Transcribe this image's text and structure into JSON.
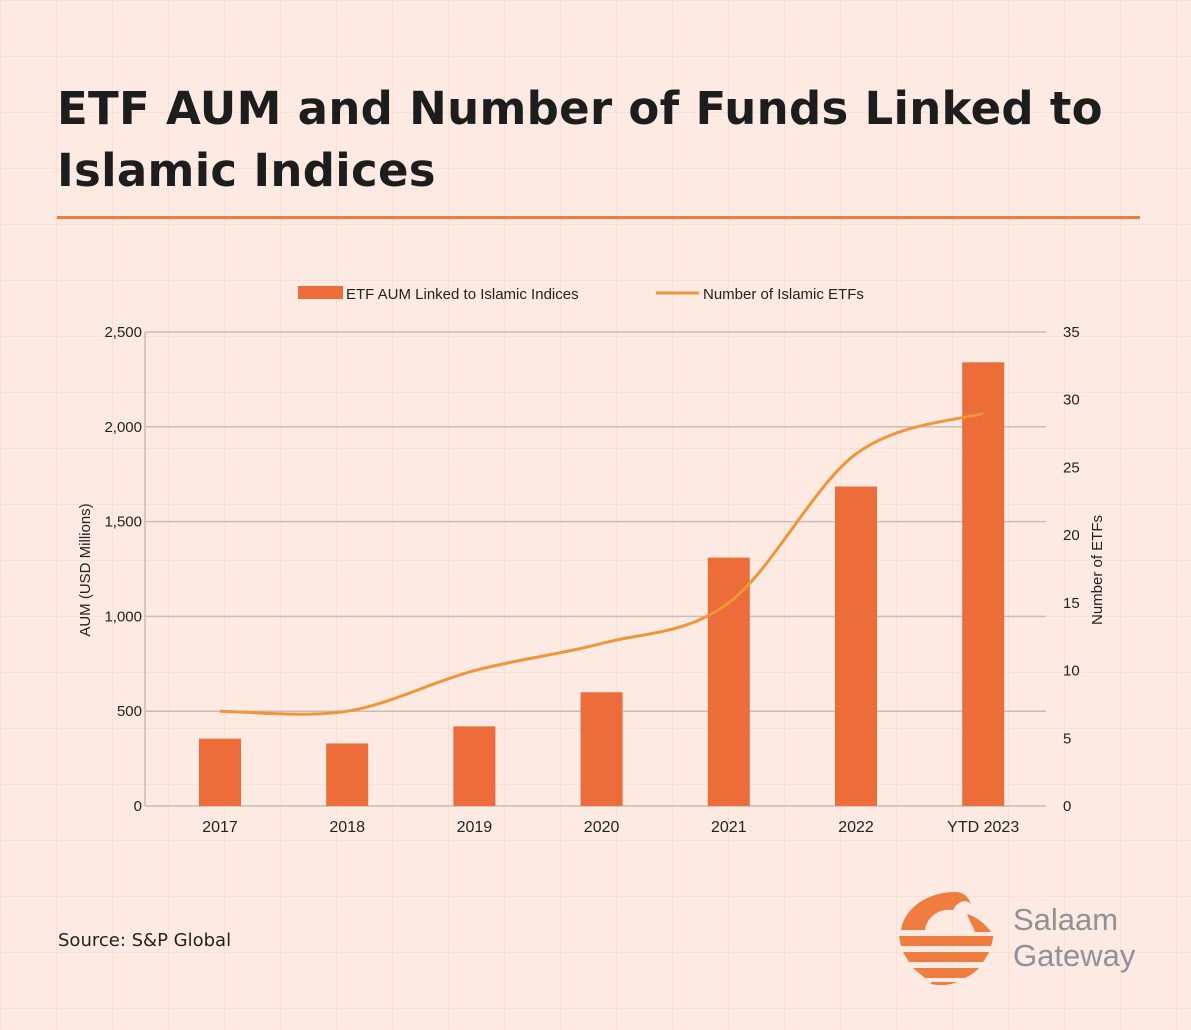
{
  "title": "ETF AUM and Number of Funds Linked to Islamic Indices",
  "source": "Source: S&P Global",
  "logo": {
    "line1": "Salaam",
    "line2": "Gateway",
    "color": "#ef7d3f"
  },
  "chart_data": {
    "type": "bar+line",
    "categories": [
      "2017",
      "2018",
      "2019",
      "2020",
      "2021",
      "2022",
      "YTD 2023"
    ],
    "series": [
      {
        "name": "ETF AUM Linked to Islamic Indices",
        "type": "bar",
        "axis": "left",
        "values": [
          355,
          330,
          420,
          600,
          1310,
          1685,
          2340
        ],
        "color": "#ec6c3a"
      },
      {
        "name": "Number of Islamic ETFs",
        "type": "line",
        "axis": "right",
        "smooth": true,
        "values": [
          7,
          7,
          10,
          12,
          15,
          26,
          29
        ],
        "color": "#f0953a"
      }
    ],
    "ylabel": "AUM (USD Millions)",
    "ylim": [
      0,
      2500
    ],
    "yticks": [
      "0",
      "500",
      "1,000",
      "1,500",
      "2,000",
      "2,500"
    ],
    "y2label": "Number of ETFs",
    "y2lim": [
      0,
      35
    ],
    "y2ticks": [
      "0",
      "5",
      "10",
      "15",
      "20",
      "25",
      "30",
      "35"
    ],
    "grid": true,
    "legend": "top"
  }
}
